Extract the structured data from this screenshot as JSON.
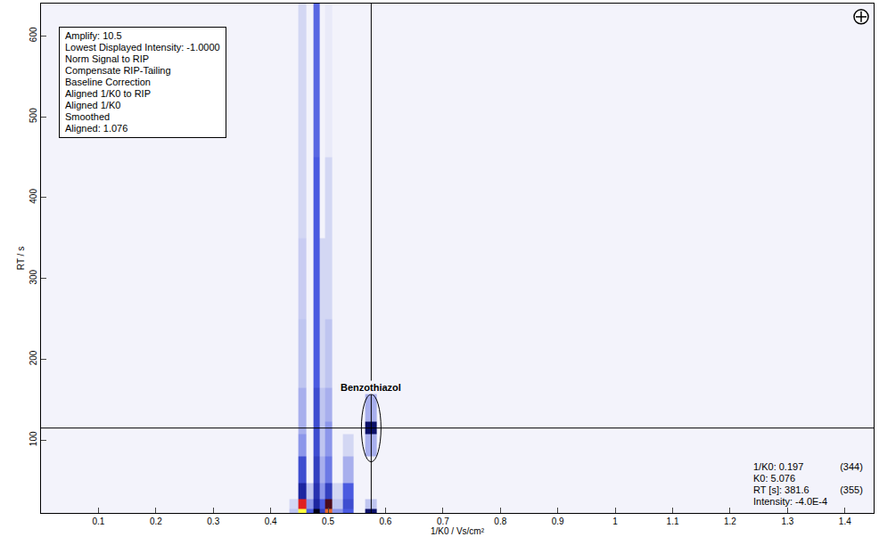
{
  "chart_data": {
    "type": "heatmap",
    "x_label": "1/K0 / Vs/cm²",
    "y_label": "RT / s",
    "xlim": [
      0,
      1.45
    ],
    "xticks": [
      0.1,
      0.2,
      0.3,
      0.4,
      0.5,
      0.6,
      0.7,
      0.8,
      0.9,
      1,
      1.1,
      1.2,
      1.3,
      1.4
    ],
    "ylim": [
      10,
      640
    ],
    "yticks": [
      100,
      200,
      300,
      400,
      500,
      600
    ],
    "x": [
      0.44,
      0.455,
      0.468,
      0.48,
      0.49,
      0.5,
      0.515,
      0.535,
      0.555,
      0.575,
      0.595
    ],
    "y": [
      10,
      20,
      35,
      60,
      100,
      115,
      130,
      200,
      300,
      400,
      500,
      640
    ],
    "z": [
      [
        0.1,
        1.0,
        0.3,
        0.7,
        0.4,
        0.9,
        0.2,
        0.3,
        0,
        0.6,
        0
      ],
      [
        0.05,
        0.85,
        0.2,
        0.5,
        0.3,
        0.75,
        0.1,
        0.35,
        0,
        0.1,
        0
      ],
      [
        0,
        0.5,
        0.1,
        0.45,
        0.2,
        0.4,
        0.05,
        0.3,
        0,
        0,
        0
      ],
      [
        0,
        0.35,
        0,
        0.4,
        0.15,
        0.25,
        0,
        0.15,
        0,
        0,
        0
      ],
      [
        0,
        0.2,
        0,
        0.35,
        0.1,
        0.2,
        0,
        0.05,
        0,
        0.15,
        0
      ],
      [
        0,
        0.15,
        0,
        0.35,
        0.1,
        0.2,
        0,
        0,
        0,
        0.6,
        0
      ],
      [
        0,
        0.15,
        0,
        0.35,
        0.1,
        0.15,
        0,
        0,
        0,
        0.15,
        0
      ],
      [
        0,
        0.1,
        0,
        0.3,
        0.05,
        0.1,
        0,
        0,
        0,
        0,
        0
      ],
      [
        0,
        0.08,
        0,
        0.3,
        0.05,
        0.05,
        0,
        0,
        0,
        0,
        0
      ],
      [
        0,
        0.05,
        0,
        0.3,
        0,
        0.05,
        0,
        0,
        0,
        0,
        0
      ],
      [
        0,
        0.05,
        0,
        0.28,
        0,
        0.03,
        0,
        0,
        0,
        0,
        0
      ],
      [
        0,
        0.05,
        0,
        0.28,
        0,
        0.03,
        0,
        0,
        0,
        0,
        0
      ]
    ],
    "zlim": [
      0,
      1
    ],
    "annotations": [
      {
        "text": "Benzothiazol",
        "x": 0.575,
        "y": 115
      }
    ],
    "cursor": {
      "x": 0.575,
      "y": 115
    },
    "info_box": [
      "Amplify: 10.5",
      "Lowest Displayed Intensity: -1.0000",
      "Norm Signal to RIP",
      "Compensate RIP-Tailing",
      "Baseline Correction",
      "Aligned 1/K0 to RIP",
      "Aligned 1/K0",
      "Smoothed",
      "Aligned: 1.076"
    ],
    "readout": [
      [
        "1/K0: 0.197",
        "(344)"
      ],
      [
        "K0: 5.076"
      ],
      [
        "RT [s]: 381.6",
        "(355)"
      ],
      [
        "Intensity: -4.0E-4"
      ]
    ]
  }
}
